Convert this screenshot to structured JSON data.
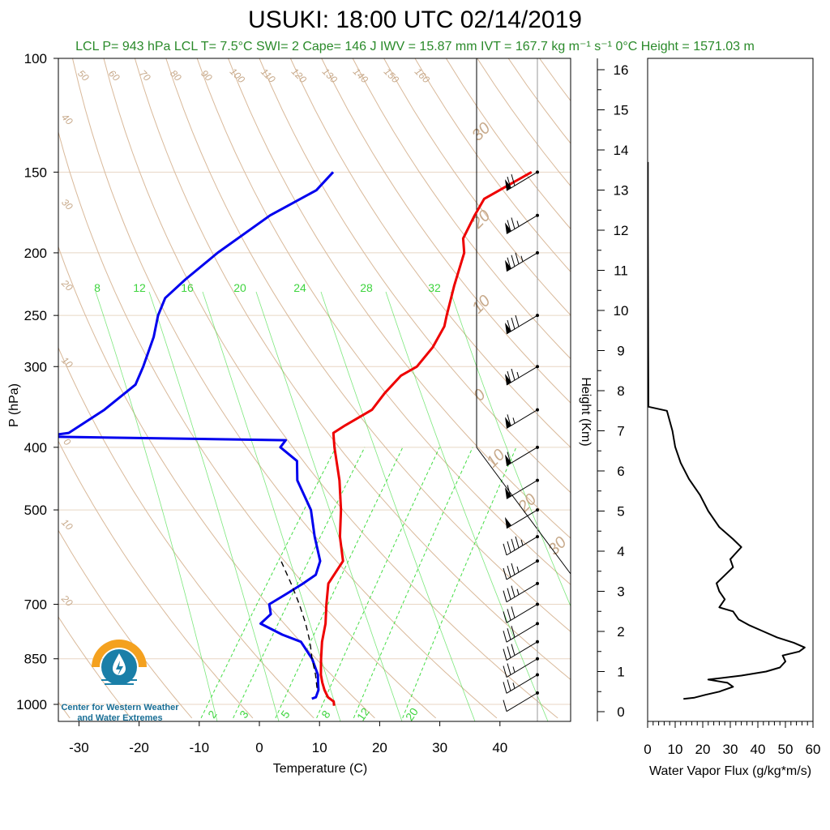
{
  "header": {
    "title": "USUKI: 18:00 UTC 02/14/2019",
    "subtitle": "LCL P= 943 hPa  LCL T= 7.5°C  SWI= 2  Cape= 146 J  IWV = 15.87 mm  IVT = 167.7 kg m⁻¹ s⁻¹  0°C Height = 1571.03 m"
  },
  "logo": {
    "line1": "Center for Western Weather",
    "line2": "and Water Extremes",
    "colors": {
      "orange": "#f4a11f",
      "blue": "#1a7fa8"
    }
  },
  "colors": {
    "temperature": "#ee0000",
    "dewpoint": "#0000ee",
    "dry_adiabat": "#d9b99a",
    "mixing_ratio": "#44dd44",
    "parcel": "#000000",
    "flux": "#000000"
  },
  "chart_data": [
    {
      "type": "line",
      "title": "USUKI: 18:00 UTC 02/14/2019",
      "subtitle_kind": "skew-T log-P sounding",
      "xlabel": "Temperature (C)",
      "ylabel": "P (hPa)",
      "xticks": [
        -30,
        -20,
        -10,
        0,
        10,
        20,
        30,
        40
      ],
      "yticks": [
        100,
        150,
        200,
        250,
        300,
        400,
        500,
        700,
        850,
        1000
      ],
      "xlim": [
        -33,
        51
      ],
      "ylim": [
        1050,
        100
      ],
      "y_scale": "log",
      "skewed": true,
      "mixing_ratio_labels": [
        "8",
        "12",
        "16",
        "20",
        "24",
        "28",
        "32"
      ],
      "mixing_ratio_labels_bottom": [
        "2",
        "3",
        "5",
        "8",
        "12",
        "20"
      ],
      "dry_adiabat_labels_top": [
        "50",
        "60",
        "70",
        "80",
        "90",
        "100",
        "110",
        "120",
        "130",
        "140",
        "150",
        "160"
      ],
      "dry_adiabat_labels_left": [
        "40",
        "30",
        "20",
        "10",
        "0",
        "10",
        "20"
      ],
      "dry_adiabat_labels_right": [
        "30",
        "20",
        "10",
        "0",
        "10",
        "20",
        "30"
      ],
      "series": [
        {
          "name": "Temperature",
          "points": [
            [
              1005,
              12.6
            ],
            [
              990,
              12.0
            ],
            [
              975,
              10.5
            ],
            [
              950,
              9.0
            ],
            [
              925,
              7.7
            ],
            [
              900,
              6.5
            ],
            [
              850,
              4.5
            ],
            [
              800,
              2.5
            ],
            [
              750,
              0.8
            ],
            [
              700,
              -1.5
            ],
            [
              650,
              -3.8
            ],
            [
              600,
              -4.2
            ],
            [
              550,
              -7.8
            ],
            [
              500,
              -11.0
            ],
            [
              450,
              -15.0
            ],
            [
              400,
              -20.0
            ],
            [
              380,
              -22.0
            ],
            [
              370,
              -21.0
            ],
            [
              350,
              -18.5
            ],
            [
              330,
              -18.5
            ],
            [
              310,
              -18.0
            ],
            [
              300,
              -16.5
            ],
            [
              280,
              -16.3
            ],
            [
              260,
              -17.0
            ],
            [
              250,
              -18.0
            ],
            [
              225,
              -20.5
            ],
            [
              200,
              -23.0
            ],
            [
              190,
              -25.0
            ],
            [
              175,
              -26.0
            ],
            [
              165,
              -26.5
            ],
            [
              150,
              -22.0
            ]
          ]
        },
        {
          "name": "Dewpoint",
          "points": [
            [
              980,
              8.0
            ],
            [
              975,
              8.5
            ],
            [
              950,
              8.0
            ],
            [
              925,
              7.0
            ],
            [
              900,
              6.0
            ],
            [
              850,
              3.0
            ],
            [
              800,
              -1.0
            ],
            [
              780,
              -5.0
            ],
            [
              750,
              -10.0
            ],
            [
              725,
              -9.5
            ],
            [
              700,
              -11.0
            ],
            [
              675,
              -9.5
            ],
            [
              650,
              -8.0
            ],
            [
              630,
              -7.0
            ],
            [
              600,
              -8.0
            ],
            [
              550,
              -12.0
            ],
            [
              500,
              -16.0
            ],
            [
              450,
              -22.0
            ],
            [
              420,
              -24.5
            ],
            [
              400,
              -29.0
            ],
            [
              390,
              -29.0
            ],
            [
              385,
              -70.0
            ],
            [
              380,
              -66.0
            ],
            [
              350,
              -63.0
            ],
            [
              320,
              -61.0
            ],
            [
              300,
              -62.0
            ],
            [
              270,
              -64.0
            ],
            [
              250,
              -66.0
            ],
            [
              235,
              -67.0
            ],
            [
              220,
              -66.0
            ],
            [
              200,
              -64.0
            ],
            [
              175,
              -60.0
            ],
            [
              160,
              -55.5
            ],
            [
              150,
              -55.0
            ]
          ]
        },
        {
          "name": "Parcel",
          "points": [
            [
              943,
              7.5
            ],
            [
              900,
              5.6
            ],
            [
              850,
              3.0
            ],
            [
              800,
              0.5
            ],
            [
              750,
              -2.5
            ],
            [
              700,
              -6.0
            ],
            [
              650,
              -10.0
            ],
            [
              600,
              -14.5
            ]
          ]
        }
      ],
      "wind_barbs": {
        "pressures": [
          960,
          900,
          850,
          800,
          750,
          700,
          650,
          600,
          550,
          500,
          450,
          400,
          350,
          300,
          250,
          200,
          175,
          150
        ],
        "speeds_kt": [
          10,
          25,
          25,
          30,
          30,
          30,
          35,
          35,
          45,
          50,
          60,
          60,
          65,
          75,
          80,
          85,
          75,
          70
        ]
      }
    },
    {
      "type": "line",
      "xlabel": "Water Vapor Flux (g/kg*m/s)",
      "ylabel": "Height (Km)",
      "xticks": [
        0,
        10,
        20,
        30,
        40,
        50,
        60
      ],
      "yticks": [
        0,
        1,
        2,
        3,
        4,
        5,
        6,
        7,
        8,
        9,
        10,
        11,
        12,
        13,
        14,
        15,
        16
      ],
      "xlim": [
        0,
        60
      ],
      "ylim": [
        -0.2,
        16.3
      ],
      "series": [
        {
          "name": "Water Vapor Flux",
          "points": [
            [
              13,
              0.32
            ],
            [
              17,
              0.35
            ],
            [
              21,
              0.42
            ],
            [
              26,
              0.5
            ],
            [
              31,
              0.62
            ],
            [
              29,
              0.72
            ],
            [
              22,
              0.8
            ],
            [
              34,
              0.9
            ],
            [
              43,
              1.0
            ],
            [
              48,
              1.1
            ],
            [
              50,
              1.25
            ],
            [
              49,
              1.4
            ],
            [
              55,
              1.5
            ],
            [
              57,
              1.6
            ],
            [
              53,
              1.72
            ],
            [
              47,
              1.85
            ],
            [
              42,
              2.0
            ],
            [
              37,
              2.15
            ],
            [
              33,
              2.3
            ],
            [
              31,
              2.5
            ],
            [
              26,
              2.6
            ],
            [
              28,
              2.8
            ],
            [
              26,
              3.0
            ],
            [
              25,
              3.2
            ],
            [
              28,
              3.4
            ],
            [
              31,
              3.6
            ],
            [
              30,
              3.8
            ],
            [
              34,
              4.1
            ],
            [
              31,
              4.3
            ],
            [
              26,
              4.6
            ],
            [
              22,
              5.0
            ],
            [
              19,
              5.4
            ],
            [
              15,
              5.8
            ],
            [
              12,
              6.2
            ],
            [
              10,
              6.6
            ],
            [
              9,
              7.0
            ],
            [
              7,
              7.5
            ],
            [
              0.3,
              7.6
            ],
            [
              0.2,
              9.0
            ],
            [
              0.1,
              12.0
            ],
            [
              0.1,
              13.7
            ]
          ]
        }
      ]
    }
  ]
}
